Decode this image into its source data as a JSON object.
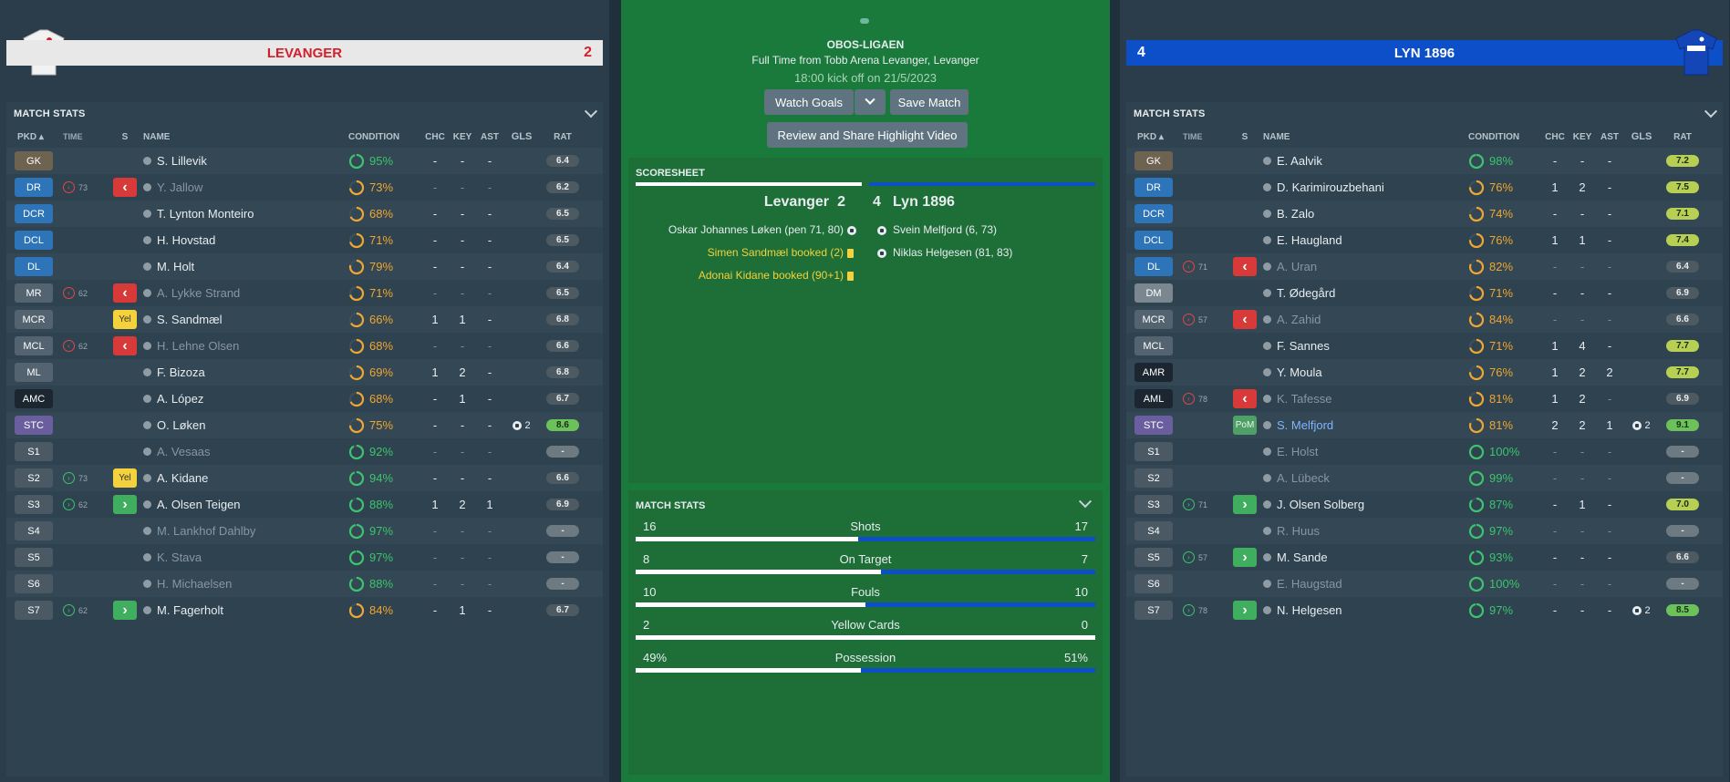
{
  "competition": {
    "name": "OBOS-LIGAEN",
    "subtitle": "Full Time from Tobb Arena Levanger, Levanger",
    "kickoff": "18:00 kick off on 21/5/2023",
    "buttons": {
      "watch": "Watch Goals",
      "save": "Save Match",
      "review": "Review and Share Highlight Video"
    }
  },
  "home": {
    "name": "LEVANGER",
    "score": "2",
    "stats_title": "MATCH STATS",
    "columns": [
      "PKD",
      "TIME",
      "S",
      "NAME",
      "CONDITION",
      "CHC",
      "KEY",
      "AST",
      "GLS",
      "RAT"
    ],
    "players": [
      {
        "pos": "GK",
        "pc": "#6e6250",
        "time": "",
        "sub": "",
        "s": "",
        "name": "S. Lillevik",
        "dim": false,
        "cond": "95%",
        "condv": 0.95,
        "chc": "-",
        "key": "-",
        "ast": "-",
        "gls": "",
        "rat": "6.4",
        "rc": "#4d5a62"
      },
      {
        "pos": "DR",
        "pc": "#2e74b8",
        "time": "73",
        "sub": "off",
        "s": "off",
        "name": "Y. Jallow",
        "dim": true,
        "cond": "73%",
        "condv": 0.73,
        "chc": "-",
        "key": "-",
        "ast": "-",
        "gls": "",
        "rat": "6.2",
        "rc": "#4d5a62"
      },
      {
        "pos": "DCR",
        "pc": "#2e74b8",
        "time": "",
        "sub": "",
        "s": "",
        "name": "T. Lynton Monteiro",
        "dim": false,
        "cond": "68%",
        "condv": 0.68,
        "chc": "-",
        "key": "-",
        "ast": "-",
        "gls": "",
        "rat": "6.5",
        "rc": "#4d5a62"
      },
      {
        "pos": "DCL",
        "pc": "#2e74b8",
        "time": "",
        "sub": "",
        "s": "",
        "name": "H. Hovstad",
        "dim": false,
        "cond": "71%",
        "condv": 0.71,
        "chc": "-",
        "key": "-",
        "ast": "-",
        "gls": "",
        "rat": "6.5",
        "rc": "#4d5a62"
      },
      {
        "pos": "DL",
        "pc": "#2e74b8",
        "time": "",
        "sub": "",
        "s": "",
        "name": "M. Holt",
        "dim": false,
        "cond": "79%",
        "condv": 0.79,
        "chc": "-",
        "key": "-",
        "ast": "-",
        "gls": "",
        "rat": "6.4",
        "rc": "#4d5a62"
      },
      {
        "pos": "MR",
        "pc": "#536470",
        "time": "62",
        "sub": "off",
        "s": "off",
        "name": "A. Lykke Strand",
        "dim": true,
        "cond": "71%",
        "condv": 0.71,
        "chc": "-",
        "key": "-",
        "ast": "-",
        "gls": "",
        "rat": "6.5",
        "rc": "#4d5a62"
      },
      {
        "pos": "MCR",
        "pc": "#536470",
        "time": "",
        "sub": "",
        "s": "yel",
        "name": "S. Sandmæl",
        "dim": false,
        "cond": "66%",
        "condv": 0.66,
        "chc": "1",
        "key": "1",
        "ast": "-",
        "gls": "",
        "rat": "6.8",
        "rc": "#4d5a62"
      },
      {
        "pos": "MCL",
        "pc": "#536470",
        "time": "62",
        "sub": "off",
        "s": "off",
        "name": "H. Lehne Olsen",
        "dim": true,
        "cond": "68%",
        "condv": 0.68,
        "chc": "-",
        "key": "-",
        "ast": "-",
        "gls": "",
        "rat": "6.6",
        "rc": "#4d5a62"
      },
      {
        "pos": "ML",
        "pc": "#536470",
        "time": "",
        "sub": "",
        "s": "",
        "name": "F. Bizoza",
        "dim": false,
        "cond": "69%",
        "condv": 0.69,
        "chc": "1",
        "key": "2",
        "ast": "-",
        "gls": "",
        "rat": "6.8",
        "rc": "#4d5a62"
      },
      {
        "pos": "AMC",
        "pc": "#1b2630",
        "time": "",
        "sub": "",
        "s": "",
        "name": "A. López",
        "dim": false,
        "cond": "68%",
        "condv": 0.68,
        "chc": "-",
        "key": "1",
        "ast": "-",
        "gls": "",
        "rat": "6.7",
        "rc": "#4d5a62"
      },
      {
        "pos": "STC",
        "pc": "#6b5e9e",
        "time": "",
        "sub": "",
        "s": "",
        "name": "O. Løken",
        "dim": false,
        "cond": "75%",
        "condv": 0.75,
        "chc": "-",
        "key": "-",
        "ast": "-",
        "gls": "2",
        "rat": "8.6",
        "rc": "#6bc25a"
      },
      {
        "pos": "S1",
        "pc": "#4a5963",
        "time": "",
        "sub": "",
        "s": "",
        "name": "A. Vesaas",
        "dim": true,
        "cond": "92%",
        "condv": 0.92,
        "chc": "-",
        "key": "-",
        "ast": "-",
        "gls": "",
        "rat": "-",
        "rc": "#6d7a82"
      },
      {
        "pos": "S2",
        "pc": "#4a5963",
        "time": "73",
        "sub": "on",
        "s": "yel",
        "name": "A. Kidane",
        "dim": false,
        "cond": "94%",
        "condv": 0.94,
        "chc": "-",
        "key": "-",
        "ast": "-",
        "gls": "",
        "rat": "6.6",
        "rc": "#4d5a62"
      },
      {
        "pos": "S3",
        "pc": "#4a5963",
        "time": "62",
        "sub": "on",
        "s": "on",
        "name": "A. Olsen Teigen",
        "dim": false,
        "cond": "88%",
        "condv": 0.88,
        "chc": "1",
        "key": "2",
        "ast": "1",
        "gls": "",
        "rat": "6.9",
        "rc": "#4d5a62"
      },
      {
        "pos": "S4",
        "pc": "#4a5963",
        "time": "",
        "sub": "",
        "s": "",
        "name": "M. Lankhof Dahlby",
        "dim": true,
        "cond": "97%",
        "condv": 0.97,
        "chc": "-",
        "key": "-",
        "ast": "-",
        "gls": "",
        "rat": "-",
        "rc": "#6d7a82"
      },
      {
        "pos": "S5",
        "pc": "#4a5963",
        "time": "",
        "sub": "",
        "s": "",
        "name": "K. Stava",
        "dim": true,
        "cond": "97%",
        "condv": 0.97,
        "chc": "-",
        "key": "-",
        "ast": "-",
        "gls": "",
        "rat": "-",
        "rc": "#6d7a82"
      },
      {
        "pos": "S6",
        "pc": "#4a5963",
        "time": "",
        "sub": "",
        "s": "",
        "name": "H. Michaelsen",
        "dim": true,
        "cond": "88%",
        "condv": 0.88,
        "chc": "-",
        "key": "-",
        "ast": "-",
        "gls": "",
        "rat": "-",
        "rc": "#6d7a82"
      },
      {
        "pos": "S7",
        "pc": "#4a5963",
        "time": "62",
        "sub": "on",
        "s": "on",
        "name": "M. Fagerholt",
        "dim": false,
        "cond": "84%",
        "condv": 0.84,
        "chc": "-",
        "key": "1",
        "ast": "-",
        "gls": "",
        "rat": "6.7",
        "rc": "#4d5a62"
      }
    ]
  },
  "away": {
    "name": "LYN 1896",
    "score": "4",
    "stats_title": "MATCH STATS",
    "columns": [
      "PKD",
      "TIME",
      "S",
      "NAME",
      "CONDITION",
      "CHC",
      "KEY",
      "AST",
      "GLS",
      "RAT"
    ],
    "players": [
      {
        "pos": "GK",
        "pc": "#6e6250",
        "time": "",
        "sub": "",
        "s": "",
        "name": "E. Aalvik",
        "dim": false,
        "cond": "98%",
        "condv": 0.98,
        "chc": "-",
        "key": "-",
        "ast": "-",
        "gls": "",
        "rat": "7.2",
        "rc": "#b7cf53"
      },
      {
        "pos": "DR",
        "pc": "#2e74b8",
        "time": "",
        "sub": "",
        "s": "",
        "name": "D. Karimirouzbehani",
        "dim": false,
        "cond": "76%",
        "condv": 0.76,
        "chc": "1",
        "key": "2",
        "ast": "-",
        "gls": "",
        "rat": "7.5",
        "rc": "#b7cf53"
      },
      {
        "pos": "DCR",
        "pc": "#2e74b8",
        "time": "",
        "sub": "",
        "s": "",
        "name": "B. Zalo",
        "dim": false,
        "cond": "74%",
        "condv": 0.74,
        "chc": "-",
        "key": "-",
        "ast": "-",
        "gls": "",
        "rat": "7.1",
        "rc": "#b7cf53"
      },
      {
        "pos": "DCL",
        "pc": "#2e74b8",
        "time": "",
        "sub": "",
        "s": "",
        "name": "E. Haugland",
        "dim": false,
        "cond": "76%",
        "condv": 0.76,
        "chc": "1",
        "key": "1",
        "ast": "-",
        "gls": "",
        "rat": "7.4",
        "rc": "#b7cf53"
      },
      {
        "pos": "DL",
        "pc": "#2e74b8",
        "time": "71",
        "sub": "off",
        "s": "off",
        "name": "A. Uran",
        "dim": true,
        "cond": "82%",
        "condv": 0.82,
        "chc": "-",
        "key": "-",
        "ast": "-",
        "gls": "",
        "rat": "6.4",
        "rc": "#4d5a62"
      },
      {
        "pos": "DM",
        "pc": "#7a8790",
        "time": "",
        "sub": "",
        "s": "",
        "name": "T. Ødegård",
        "dim": false,
        "cond": "71%",
        "condv": 0.71,
        "chc": "-",
        "key": "-",
        "ast": "-",
        "gls": "",
        "rat": "6.9",
        "rc": "#4d5a62"
      },
      {
        "pos": "MCR",
        "pc": "#536470",
        "time": "57",
        "sub": "off",
        "s": "off",
        "name": "A. Zahid",
        "dim": true,
        "cond": "84%",
        "condv": 0.84,
        "chc": "-",
        "key": "-",
        "ast": "-",
        "gls": "",
        "rat": "6.6",
        "rc": "#4d5a62"
      },
      {
        "pos": "MCL",
        "pc": "#536470",
        "time": "",
        "sub": "",
        "s": "",
        "name": "F. Sannes",
        "dim": false,
        "cond": "71%",
        "condv": 0.71,
        "chc": "1",
        "key": "4",
        "ast": "-",
        "gls": "",
        "rat": "7.7",
        "rc": "#b7cf53"
      },
      {
        "pos": "AMR",
        "pc": "#1b2630",
        "time": "",
        "sub": "",
        "s": "",
        "name": "Y. Moula",
        "dim": false,
        "cond": "76%",
        "condv": 0.76,
        "chc": "1",
        "key": "2",
        "ast": "2",
        "gls": "",
        "rat": "7.7",
        "rc": "#b7cf53"
      },
      {
        "pos": "AML",
        "pc": "#1b2630",
        "time": "78",
        "sub": "off",
        "s": "off",
        "name": "K. Tafesse",
        "dim": true,
        "cond": "81%",
        "condv": 0.81,
        "chc": "1",
        "key": "2",
        "ast": "-",
        "gls": "",
        "rat": "6.9",
        "rc": "#4d5a62"
      },
      {
        "pos": "STC",
        "pc": "#6b5e9e",
        "time": "",
        "sub": "",
        "s": "pom",
        "name": "S. Melfjord",
        "dim": false,
        "hl": true,
        "cond": "81%",
        "condv": 0.81,
        "chc": "2",
        "key": "2",
        "ast": "1",
        "gls": "2",
        "rat": "9.1",
        "rc": "#6bc25a"
      },
      {
        "pos": "S1",
        "pc": "#4a5963",
        "time": "",
        "sub": "",
        "s": "",
        "name": "E. Holst",
        "dim": true,
        "cond": "100%",
        "condv": 1.0,
        "chc": "-",
        "key": "-",
        "ast": "-",
        "gls": "",
        "rat": "-",
        "rc": "#6d7a82"
      },
      {
        "pos": "S2",
        "pc": "#4a5963",
        "time": "",
        "sub": "",
        "s": "",
        "name": "A. Lübeck",
        "dim": true,
        "cond": "99%",
        "condv": 0.99,
        "chc": "-",
        "key": "-",
        "ast": "-",
        "gls": "",
        "rat": "-",
        "rc": "#6d7a82"
      },
      {
        "pos": "S3",
        "pc": "#4a5963",
        "time": "71",
        "sub": "on",
        "s": "on",
        "name": "J. Olsen Solberg",
        "dim": false,
        "cond": "87%",
        "condv": 0.87,
        "chc": "-",
        "key": "1",
        "ast": "-",
        "gls": "",
        "rat": "7.0",
        "rc": "#b7cf53"
      },
      {
        "pos": "S4",
        "pc": "#4a5963",
        "time": "",
        "sub": "",
        "s": "",
        "name": "R. Huus",
        "dim": true,
        "cond": "97%",
        "condv": 0.97,
        "chc": "-",
        "key": "-",
        "ast": "-",
        "gls": "",
        "rat": "-",
        "rc": "#6d7a82"
      },
      {
        "pos": "S5",
        "pc": "#4a5963",
        "time": "57",
        "sub": "on",
        "s": "on",
        "name": "M. Sande",
        "dim": false,
        "cond": "93%",
        "condv": 0.93,
        "chc": "-",
        "key": "-",
        "ast": "-",
        "gls": "",
        "rat": "6.6",
        "rc": "#4d5a62"
      },
      {
        "pos": "S6",
        "pc": "#4a5963",
        "time": "",
        "sub": "",
        "s": "",
        "name": "E. Haugstad",
        "dim": true,
        "cond": "100%",
        "condv": 1.0,
        "chc": "-",
        "key": "-",
        "ast": "-",
        "gls": "",
        "rat": "-",
        "rc": "#6d7a82"
      },
      {
        "pos": "S7",
        "pc": "#4a5963",
        "time": "78",
        "sub": "on",
        "s": "on",
        "name": "N. Helgesen",
        "dim": false,
        "cond": "97%",
        "condv": 0.97,
        "chc": "-",
        "key": "-",
        "ast": "-",
        "gls": "2",
        "rat": "8.5",
        "rc": "#6bc25a"
      }
    ]
  },
  "scoresheet": {
    "title": "SCORESHEET",
    "home_name": "Levanger",
    "home_score": "2",
    "away_name": "Lyn 1896",
    "away_score": "4",
    "home_events": [
      {
        "text": "Oskar Johannes Løken (pen 71, 80)",
        "kind": "goal"
      },
      {
        "text": "Simen Sandmæl booked (2)",
        "kind": "card"
      },
      {
        "text": "Adonai Kidane booked (90+1)",
        "kind": "card"
      }
    ],
    "away_events": [
      {
        "text": "Svein Melfjord (6, 73)",
        "kind": "goal"
      },
      {
        "text": "Niklas Helgesen (81, 83)",
        "kind": "goal"
      }
    ]
  },
  "match_stats": {
    "title": "MATCH STATS",
    "rows": [
      {
        "label": "Shots",
        "home": "16",
        "away": "17",
        "hv": 16,
        "av": 17
      },
      {
        "label": "On Target",
        "home": "8",
        "away": "7",
        "hv": 8,
        "av": 7
      },
      {
        "label": "Fouls",
        "home": "10",
        "away": "10",
        "hv": 10,
        "av": 10
      },
      {
        "label": "Yellow Cards",
        "home": "2",
        "away": "0",
        "hv": 2,
        "av": 0
      },
      {
        "label": "Possession",
        "home": "49%",
        "away": "51%",
        "hv": 49,
        "av": 51
      }
    ]
  },
  "colors": {
    "home_accent": "#d21f2a",
    "away_accent": "#0d4fc9",
    "condition_ok": "#3cc46d",
    "condition_mid": "#f0a630",
    "yellow": "#f3d23b"
  }
}
